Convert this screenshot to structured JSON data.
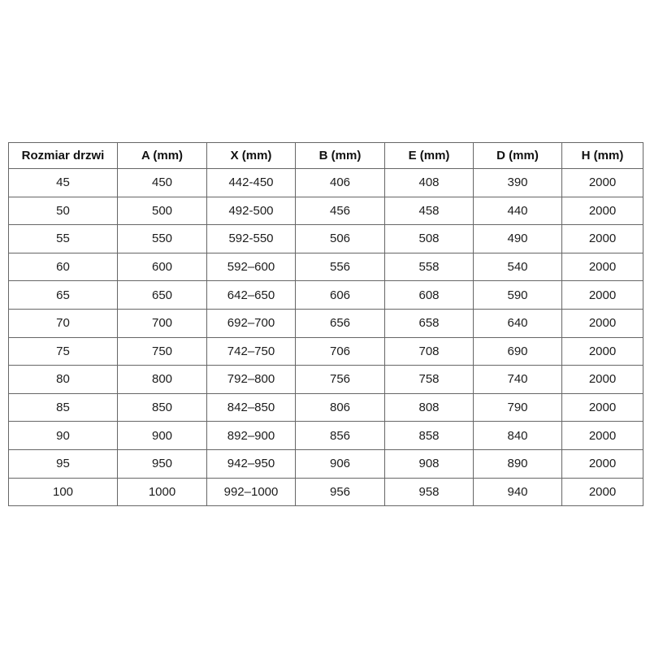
{
  "table": {
    "headers": [
      "Rozmiar drzwi",
      "A (mm)",
      "X (mm)",
      "B (mm)",
      "E (mm)",
      "D (mm)",
      "H (mm)"
    ],
    "rows": [
      [
        "45",
        "450",
        "442-450",
        "406",
        "408",
        "390",
        "2000"
      ],
      [
        "50",
        "500",
        "492-500",
        "456",
        "458",
        "440",
        "2000"
      ],
      [
        "55",
        "550",
        "592-550",
        "506",
        "508",
        "490",
        "2000"
      ],
      [
        "60",
        "600",
        "592–600",
        "556",
        "558",
        "540",
        "2000"
      ],
      [
        "65",
        "650",
        "642–650",
        "606",
        "608",
        "590",
        "2000"
      ],
      [
        "70",
        "700",
        "692–700",
        "656",
        "658",
        "640",
        "2000"
      ],
      [
        "75",
        "750",
        "742–750",
        "706",
        "708",
        "690",
        "2000"
      ],
      [
        "80",
        "800",
        "792–800",
        "756",
        "758",
        "740",
        "2000"
      ],
      [
        "85",
        "850",
        "842–850",
        "806",
        "808",
        "790",
        "2000"
      ],
      [
        "90",
        "900",
        "892–900",
        "856",
        "858",
        "840",
        "2000"
      ],
      [
        "95",
        "950",
        "942–950",
        "906",
        "908",
        "890",
        "2000"
      ],
      [
        "100",
        "1000",
        "992–1000",
        "956",
        "958",
        "940",
        "2000"
      ]
    ]
  },
  "colors": {
    "border": "#666666",
    "text": "#1c1c1c",
    "background": "#ffffff"
  }
}
